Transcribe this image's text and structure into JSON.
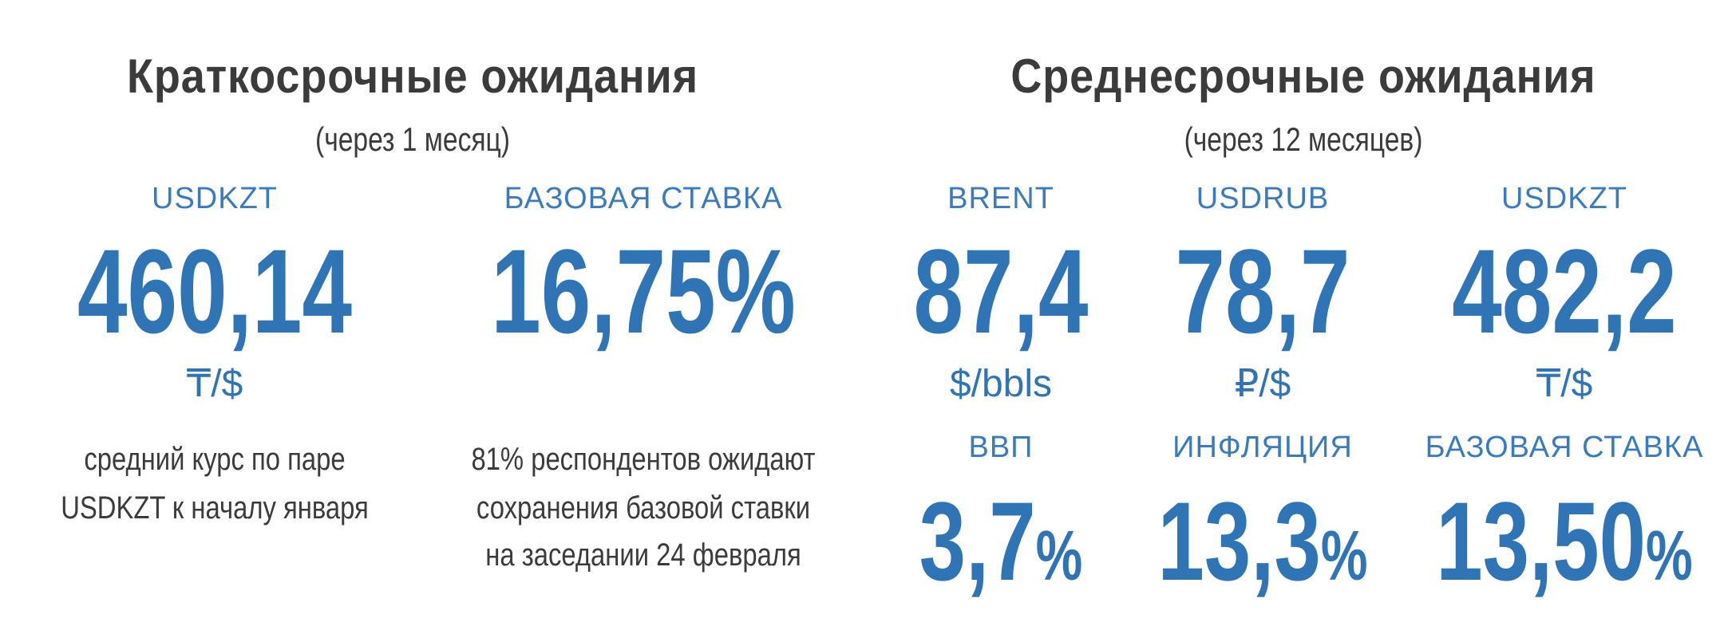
{
  "sections": [
    {
      "title": "Краткосрочные ожидания",
      "subtitle": "(через 1 месяц)",
      "items": [
        {
          "label": "USDKZT",
          "value": "460,14",
          "unit": "₸/$",
          "note": [
            "средний курс по паре",
            "USDKZT к началу января"
          ]
        },
        {
          "label": "БАЗОВАЯ СТАВКА",
          "value": "16,75%",
          "note": [
            "81% респондентов ожидают",
            "сохранения базовой ставки",
            "на заседании 24 февраля"
          ]
        }
      ]
    },
    {
      "title": "Среднесрочные ожидания",
      "subtitle": "(через 12 месяцев)",
      "items": [
        {
          "label": "BRENT",
          "value": "87,4",
          "unit": "$/bbls"
        },
        {
          "label": "USDRUB",
          "value": "78,7",
          "unit": "₽/$"
        },
        {
          "label": "USDKZT",
          "value": "482,2",
          "unit": "₸/$"
        },
        {
          "label": "ВВП",
          "value": "3,7",
          "unit": "%"
        },
        {
          "label": "ИНФЛЯЦИЯ",
          "value": "13,3",
          "unit": "%"
        },
        {
          "label": "БАЗОВАЯ СТАВКА",
          "value": "13,50",
          "unit": "%"
        }
      ]
    }
  ]
}
